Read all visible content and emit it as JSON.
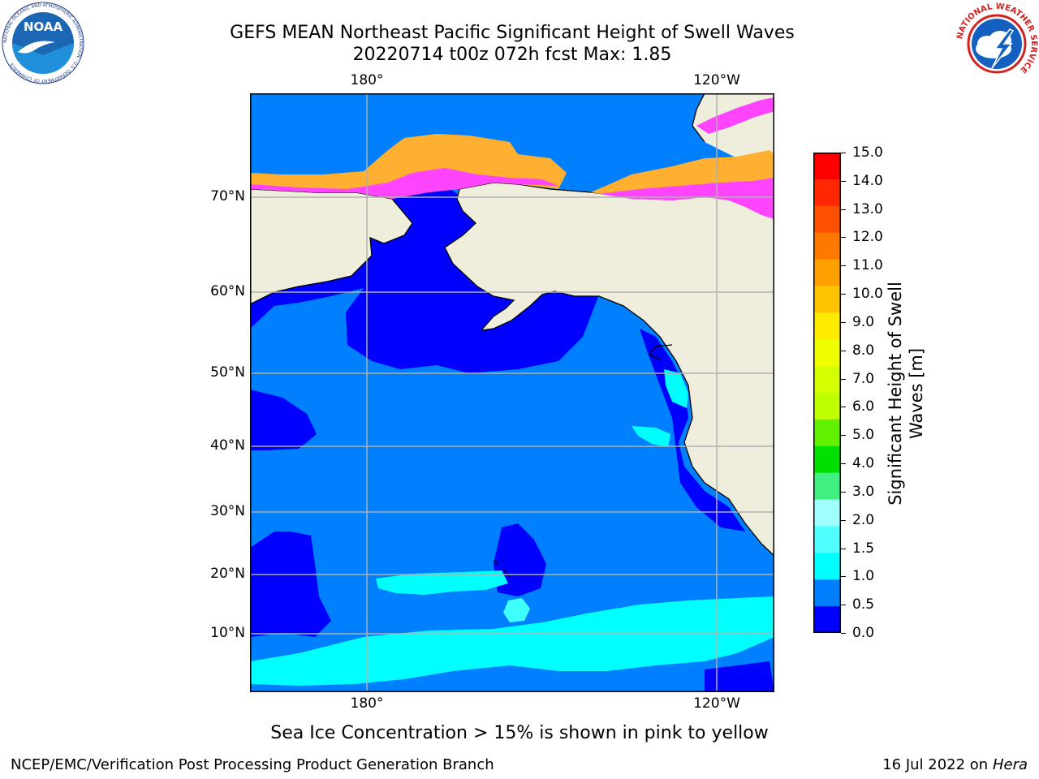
{
  "header": {
    "title_line1": "GEFS MEAN Northeast Pacific Significant Height of Swell Waves",
    "title_line2": "20220714 t00z 072h fcst   Max: 1.85"
  },
  "logos": {
    "noaa": {
      "name": "noaa-logo",
      "text": "NOAA",
      "ring_text": "NATIONAL OCEANIC AND ATMOSPHERIC ADMINISTRATION · U.S. DEPARTMENT OF COMMERCE"
    },
    "nws": {
      "name": "nws-logo",
      "ring_text": "NATIONAL WEATHER SERVICE"
    }
  },
  "map": {
    "lon_labels_top": [
      "180°",
      "120°W"
    ],
    "lon_labels_bottom": [
      "180°",
      "120°W"
    ],
    "lat_labels": [
      "70°N",
      "60°N",
      "50°N",
      "40°N",
      "30°N",
      "20°N",
      "10°N"
    ],
    "colors": {
      "land": "#efeddc",
      "ocean_0_05": "#0000ff",
      "ocean_05_10": "#0080ff",
      "ocean_10_15": "#00ffff",
      "ocean_15_20": "#40ffff",
      "ice_pink": "#ff44ff",
      "ice_orange": "#ffb030",
      "ice_yellow": "#ffd54f",
      "grid": "#b0b0b0"
    }
  },
  "colorbar": {
    "label_line1": "Significant Height of Swell",
    "label_line2": "Waves [m]",
    "ticks": [
      "15.0",
      "14.0",
      "13.0",
      "12.0",
      "11.0",
      "10.0",
      "9.0",
      "8.0",
      "7.0",
      "6.0",
      "5.0",
      "4.0",
      "3.0",
      "2.0",
      "1.5",
      "1.0",
      "0.5",
      "0.0"
    ],
    "colors_top_to_bottom": [
      "#ff0000",
      "#ff2800",
      "#ff5000",
      "#ff7800",
      "#ff9f00",
      "#ffc400",
      "#ffeb00",
      "#f0ff00",
      "#d4ff00",
      "#c0ff00",
      "#60f000",
      "#00e000",
      "#40f080",
      "#a0ffff",
      "#50ffff",
      "#00ffff",
      "#0080ff",
      "#0000ff"
    ]
  },
  "footer": {
    "note": "Sea Ice Concentration > 15% is shown in pink to yellow",
    "credit": "NCEP/EMC/Verification Post Processing Product Generation Branch",
    "date": "16 Jul 2022 on ",
    "host": "Hera"
  }
}
